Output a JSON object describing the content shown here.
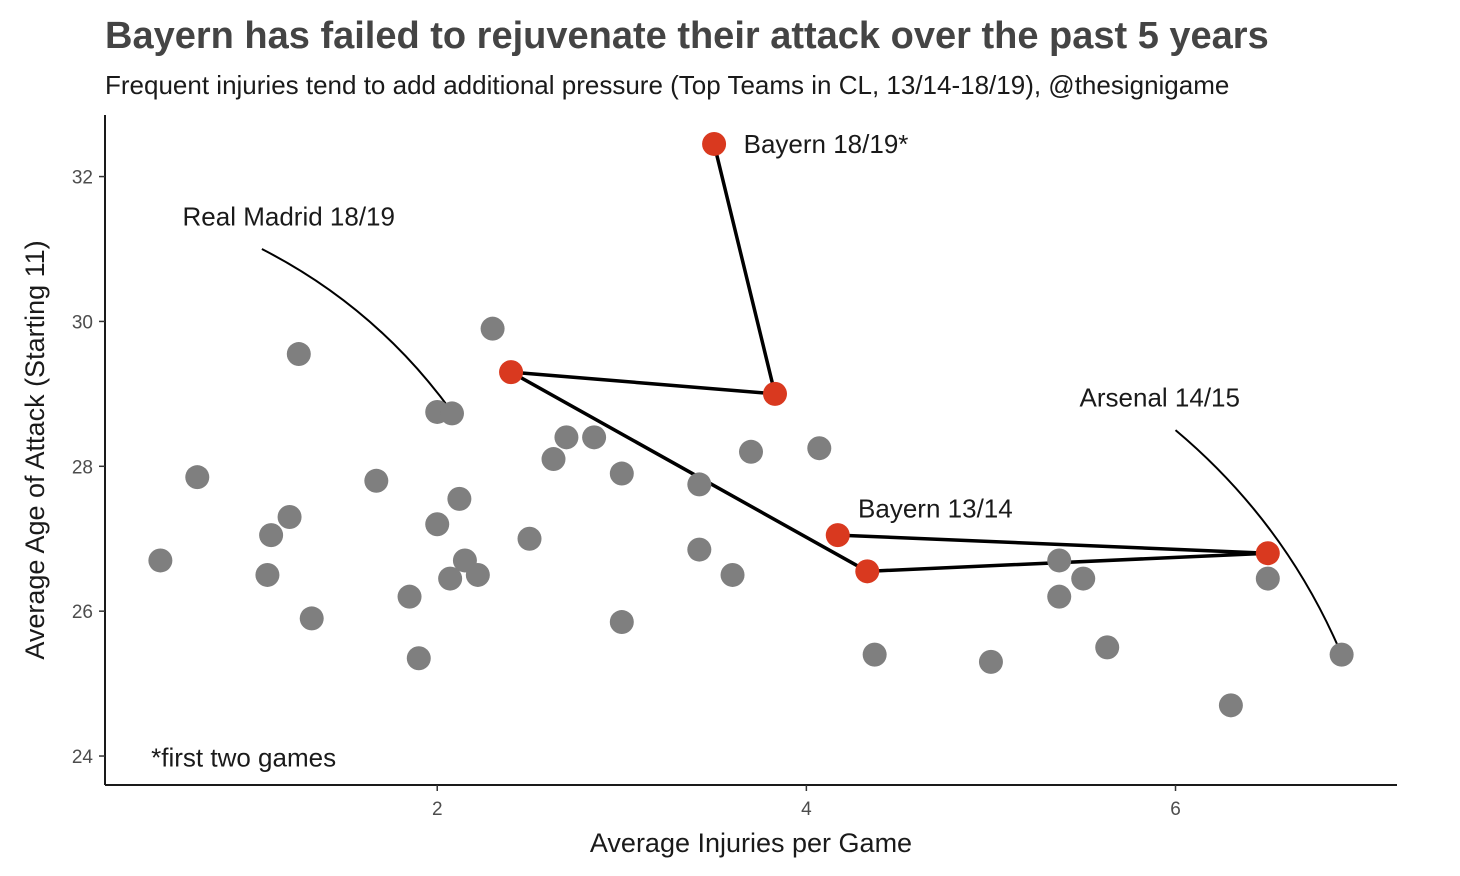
{
  "chart_data": {
    "type": "scatter",
    "title": "Bayern has failed to rejuvenate their attack over the past 5 years",
    "subtitle": "Frequent injuries tend to add additional pressure (Top Teams in CL, 13/14-18/19), @thesignigame",
    "xlabel": "Average Injuries per Game",
    "ylabel": "Average Age of Attack (Starting 11)",
    "xlim": [
      0.2,
      7.2
    ],
    "ylim": [
      23.6,
      32.85
    ],
    "x_ticks": [
      2,
      4,
      6
    ],
    "y_ticks": [
      24,
      26,
      28,
      30,
      32
    ],
    "grid": false,
    "colors": {
      "others": "#7f7f7f",
      "bayern": "#d9391f",
      "line": "#000000"
    },
    "series": [
      {
        "points": [
          [
            0.5,
            26.7
          ],
          [
            0.7,
            27.85
          ],
          [
            1.1,
            27.05
          ],
          [
            1.08,
            26.5
          ],
          [
            1.2,
            27.3
          ],
          [
            1.25,
            29.55
          ],
          [
            1.32,
            25.9
          ],
          [
            1.67,
            27.8
          ],
          [
            1.85,
            26.2
          ],
          [
            1.9,
            25.35
          ],
          [
            2.0,
            28.75
          ],
          [
            2.08,
            28.73
          ],
          [
            2.0,
            27.2
          ],
          [
            2.07,
            26.45
          ],
          [
            2.12,
            27.55
          ],
          [
            2.15,
            26.7
          ],
          [
            2.22,
            26.5
          ],
          [
            2.3,
            29.9
          ],
          [
            2.5,
            27.0
          ],
          [
            2.63,
            28.1
          ],
          [
            2.7,
            28.4
          ],
          [
            2.85,
            28.4
          ],
          [
            3.0,
            27.9
          ],
          [
            3.0,
            25.85
          ],
          [
            3.42,
            27.75
          ],
          [
            3.42,
            26.85
          ],
          [
            3.6,
            26.5
          ],
          [
            3.7,
            28.2
          ],
          [
            4.07,
            28.25
          ],
          [
            4.37,
            25.4
          ],
          [
            5.0,
            25.3
          ],
          [
            5.37,
            26.7
          ],
          [
            5.37,
            26.2
          ],
          [
            5.5,
            26.45
          ],
          [
            5.63,
            25.5
          ],
          [
            6.3,
            24.7
          ],
          [
            6.5,
            26.45
          ],
          [
            6.9,
            25.4
          ]
        ]
      },
      {
        "path": [
          [
            3.5,
            32.45
          ],
          [
            3.83,
            29.0
          ],
          [
            2.4,
            29.3
          ],
          [
            4.33,
            26.55
          ],
          [
            6.5,
            26.8
          ],
          [
            4.17,
            27.05
          ]
        ]
      }
    ],
    "annotations": [
      {
        "text": "Bayern 18/19*",
        "x": 3.66,
        "y": 32.45
      },
      {
        "text": "Bayern 13/14",
        "x": 4.28,
        "y": 27.42
      },
      {
        "text": "Real Madrid 18/19",
        "x": 0.62,
        "y": 31.45,
        "arrow_to": [
          2.08,
          28.75
        ],
        "arrow_from": [
          1.05,
          31.0
        ]
      },
      {
        "text": "Arsenal 14/15",
        "x": 5.48,
        "y": 28.95,
        "arrow_to": [
          6.9,
          25.4
        ],
        "arrow_from": [
          6.0,
          28.5
        ]
      },
      {
        "text": "*first two games",
        "x": 0.45,
        "y": 23.98
      }
    ]
  }
}
